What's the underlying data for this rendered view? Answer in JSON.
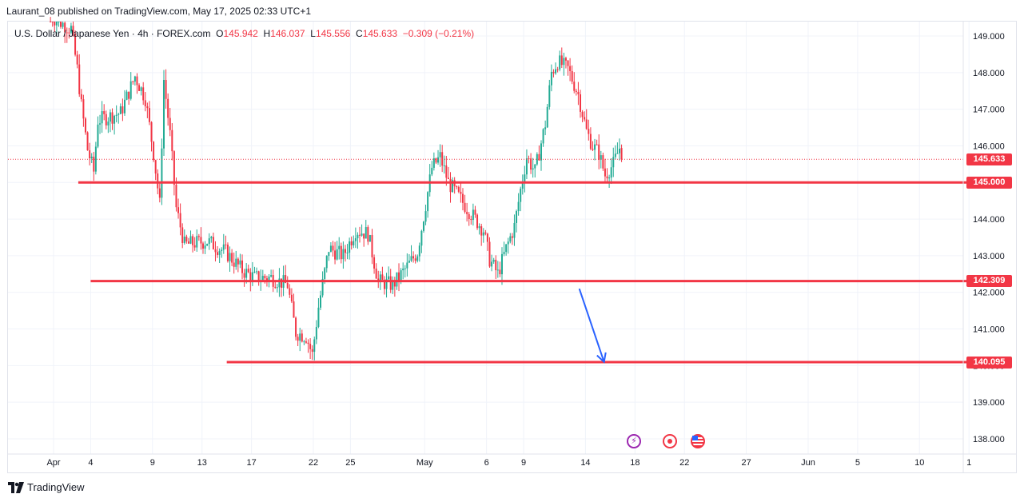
{
  "header": {
    "publisher_line": "Laurant_08 published on TradingView.com, May 17, 2025 02:33 UTC+1"
  },
  "legend": {
    "symbol_line": "U.S. Dollar / Japanese Yen · 4h · FOREX.com",
    "open_label": "O",
    "open": "145.942",
    "high_label": "H",
    "high": "146.037",
    "low_label": "L",
    "low": "145.556",
    "close_label": "C",
    "close": "145.633",
    "change": "−0.309 (−0.21%)"
  },
  "footer": {
    "brand": "TradingView"
  },
  "colors": {
    "up": "#22ab94",
    "down": "#f23645",
    "level": "#f23645",
    "arrow": "#2962ff",
    "grid": "#f0f3fa",
    "axis_text": "#131722"
  },
  "events": [
    {
      "icon": "lightning-event-icon"
    },
    {
      "icon": "record-event-icon"
    },
    {
      "icon": "us-flag-event-icon"
    }
  ],
  "chart_data": {
    "type": "candlestick",
    "timeframe": "4h",
    "y_axis": {
      "ticks": [
        "149.000",
        "148.000",
        "147.000",
        "146.000",
        "145.000",
        "144.000",
        "143.000",
        "142.000",
        "141.000",
        "140.000",
        "139.000",
        "138.000"
      ],
      "ylim": [
        137.6,
        149.3
      ]
    },
    "x_axis": {
      "ticks": [
        {
          "label": "Apr",
          "date": "2025-04-01"
        },
        {
          "label": "4",
          "date": "2025-04-04"
        },
        {
          "label": "9",
          "date": "2025-04-09"
        },
        {
          "label": "13",
          "date": "2025-04-13"
        },
        {
          "label": "17",
          "date": "2025-04-17"
        },
        {
          "label": "22",
          "date": "2025-04-22"
        },
        {
          "label": "25",
          "date": "2025-04-25"
        },
        {
          "label": "May",
          "date": "2025-05-01"
        },
        {
          "label": "6",
          "date": "2025-05-06"
        },
        {
          "label": "9",
          "date": "2025-05-09"
        },
        {
          "label": "14",
          "date": "2025-05-14"
        },
        {
          "label": "18",
          "date": "2025-05-18"
        },
        {
          "label": "22",
          "date": "2025-05-22"
        },
        {
          "label": "27",
          "date": "2025-05-27"
        },
        {
          "label": "Jun",
          "date": "2025-06-01"
        },
        {
          "label": "5",
          "date": "2025-06-05"
        },
        {
          "label": "10",
          "date": "2025-06-10"
        },
        {
          "label": "1",
          "date": "2025-06-14"
        }
      ]
    },
    "current_price": {
      "label": "145.633",
      "value": 145.633
    },
    "levels": [
      {
        "label": "145.000",
        "value": 145.0,
        "from": "2025-04-03",
        "to": "2025-06-17"
      },
      {
        "label": "142.309",
        "value": 142.309,
        "from": "2025-04-04",
        "to": "2025-06-17"
      },
      {
        "label": "140.095",
        "value": 140.095,
        "from": "2025-04-15",
        "to": "2025-06-17"
      }
    ],
    "arrow": {
      "from": {
        "date": "2025-05-13 12:00",
        "value": 142.1
      },
      "to": {
        "date": "2025-05-15 12:00",
        "value": 140.1
      }
    },
    "anchors": [
      {
        "date": "2025-03-31 16:00",
        "value": 149.6
      },
      {
        "date": "2025-04-01 12:00",
        "value": 149.4
      },
      {
        "date": "2025-04-02 12:00",
        "value": 149.2
      },
      {
        "date": "2025-04-03 00:00",
        "value": 148.1
      },
      {
        "date": "2025-04-03 08:00",
        "value": 147.1
      },
      {
        "date": "2025-04-03 20:00",
        "value": 145.9
      },
      {
        "date": "2025-04-04 08:00",
        "value": 145.3
      },
      {
        "date": "2025-04-04 16:00",
        "value": 146.7
      },
      {
        "date": "2025-04-06 12:00",
        "value": 146.9
      },
      {
        "date": "2025-04-07 16:00",
        "value": 147.9
      },
      {
        "date": "2025-04-08 12:00",
        "value": 147.3
      },
      {
        "date": "2025-04-09 04:00",
        "value": 145.8
      },
      {
        "date": "2025-04-09 16:00",
        "value": 144.4
      },
      {
        "date": "2025-04-10 00:00",
        "value": 147.8
      },
      {
        "date": "2025-04-10 12:00",
        "value": 146.3
      },
      {
        "date": "2025-04-11 00:00",
        "value": 144.3
      },
      {
        "date": "2025-04-11 16:00",
        "value": 143.3
      },
      {
        "date": "2025-04-13 12:00",
        "value": 143.4
      },
      {
        "date": "2025-04-15 00:00",
        "value": 143.1
      },
      {
        "date": "2025-04-16 08:00",
        "value": 142.6
      },
      {
        "date": "2025-04-17 08:00",
        "value": 142.4
      },
      {
        "date": "2025-04-18 16:00",
        "value": 142.4
      },
      {
        "date": "2025-04-20 00:00",
        "value": 142.2
      },
      {
        "date": "2025-04-20 16:00",
        "value": 140.9
      },
      {
        "date": "2025-04-21 12:00",
        "value": 140.8
      },
      {
        "date": "2025-04-22 00:00",
        "value": 140.3
      },
      {
        "date": "2025-04-22 12:00",
        "value": 141.6
      },
      {
        "date": "2025-04-23 08:00",
        "value": 143.2
      },
      {
        "date": "2025-04-24 12:00",
        "value": 143.0
      },
      {
        "date": "2025-04-25 12:00",
        "value": 143.7
      },
      {
        "date": "2025-04-26 12:00",
        "value": 143.6
      },
      {
        "date": "2025-04-27 08:00",
        "value": 142.3
      },
      {
        "date": "2025-04-28 12:00",
        "value": 142.2
      },
      {
        "date": "2025-04-29 16:00",
        "value": 142.7
      },
      {
        "date": "2025-04-30 12:00",
        "value": 143.1
      },
      {
        "date": "2025-05-01 04:00",
        "value": 144.4
      },
      {
        "date": "2025-05-01 16:00",
        "value": 145.4
      },
      {
        "date": "2025-05-02 08:00",
        "value": 145.7
      },
      {
        "date": "2025-05-03 00:00",
        "value": 145.0
      },
      {
        "date": "2025-05-04 12:00",
        "value": 144.3
      },
      {
        "date": "2025-05-05 20:00",
        "value": 143.7
      },
      {
        "date": "2025-05-06 08:00",
        "value": 142.9
      },
      {
        "date": "2025-05-07 00:00",
        "value": 142.5
      },
      {
        "date": "2025-05-07 16:00",
        "value": 143.2
      },
      {
        "date": "2025-05-08 08:00",
        "value": 143.8
      },
      {
        "date": "2025-05-08 20:00",
        "value": 144.8
      },
      {
        "date": "2025-05-09 08:00",
        "value": 145.7
      },
      {
        "date": "2025-05-10 00:00",
        "value": 145.3
      },
      {
        "date": "2025-05-10 20:00",
        "value": 146.6
      },
      {
        "date": "2025-05-11 08:00",
        "value": 148.0
      },
      {
        "date": "2025-05-11 20:00",
        "value": 148.3
      },
      {
        "date": "2025-05-12 16:00",
        "value": 148.1
      },
      {
        "date": "2025-05-13 12:00",
        "value": 147.4
      },
      {
        "date": "2025-05-14 04:00",
        "value": 146.4
      },
      {
        "date": "2025-05-14 16:00",
        "value": 146.0
      },
      {
        "date": "2025-05-15 04:00",
        "value": 145.8
      },
      {
        "date": "2025-05-15 16:00",
        "value": 145.2
      },
      {
        "date": "2025-05-16 08:00",
        "value": 145.5
      },
      {
        "date": "2025-05-16 20:00",
        "value": 145.94
      }
    ],
    "last_candle": {
      "open": 145.942,
      "high": 146.037,
      "low": 145.556,
      "close": 145.633
    }
  }
}
